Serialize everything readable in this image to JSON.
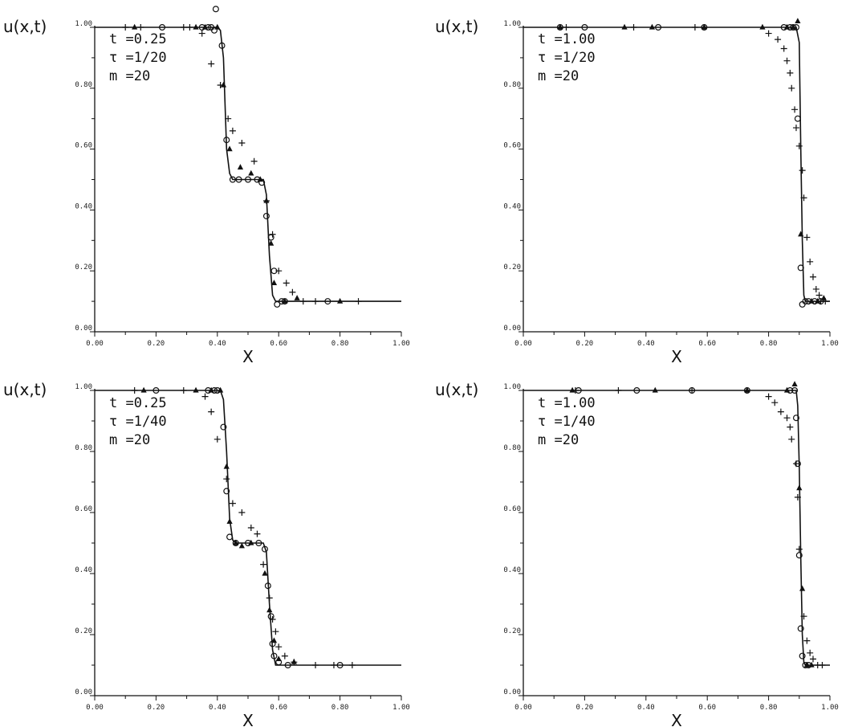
{
  "chart_data": [
    {
      "type": "line",
      "ylabel": "u(x,t)",
      "xlabel": "X",
      "xlim": [
        0,
        1
      ],
      "ylim": [
        0,
        1
      ],
      "xticks": [
        "0.00",
        "0.20",
        "0.40",
        "0.60",
        "0.80",
        "1.00"
      ],
      "yticks": [
        "0.00",
        "0.20",
        "0.40",
        "0.60",
        "0.80",
        "1.00"
      ],
      "annotation": [
        "t =0.25",
        "τ =1/20",
        "m =20"
      ],
      "exact": [
        [
          0,
          1
        ],
        [
          0.4,
          1
        ],
        [
          0.41,
          0.99
        ],
        [
          0.42,
          0.9
        ],
        [
          0.43,
          0.6
        ],
        [
          0.44,
          0.52
        ],
        [
          0.45,
          0.5
        ],
        [
          0.55,
          0.5
        ],
        [
          0.56,
          0.45
        ],
        [
          0.57,
          0.25
        ],
        [
          0.58,
          0.12
        ],
        [
          0.59,
          0.1
        ],
        [
          1.0,
          0.1
        ]
      ],
      "series": [
        {
          "marker": "circle",
          "points": [
            [
              0.22,
              1.0
            ],
            [
              0.35,
              1.0
            ],
            [
              0.37,
              1.0
            ],
            [
              0.38,
              1.0
            ],
            [
              0.39,
              0.99
            ],
            [
              0.395,
              1.06
            ],
            [
              0.415,
              0.94
            ],
            [
              0.43,
              0.63
            ],
            [
              0.45,
              0.5
            ],
            [
              0.47,
              0.5
            ],
            [
              0.5,
              0.5
            ],
            [
              0.53,
              0.5
            ],
            [
              0.545,
              0.49
            ],
            [
              0.56,
              0.38
            ],
            [
              0.575,
              0.31
            ],
            [
              0.585,
              0.2
            ],
            [
              0.595,
              0.09
            ],
            [
              0.61,
              0.1
            ],
            [
              0.62,
              0.1
            ],
            [
              0.76,
              0.1
            ]
          ]
        },
        {
          "marker": "triangle",
          "points": [
            [
              0.13,
              1.0
            ],
            [
              0.33,
              1.0
            ],
            [
              0.36,
              1.0
            ],
            [
              0.4,
              1.0
            ],
            [
              0.42,
              0.81
            ],
            [
              0.44,
              0.6
            ],
            [
              0.475,
              0.54
            ],
            [
              0.51,
              0.52
            ],
            [
              0.54,
              0.5
            ],
            [
              0.56,
              0.43
            ],
            [
              0.575,
              0.29
            ],
            [
              0.585,
              0.16
            ],
            [
              0.62,
              0.1
            ],
            [
              0.66,
              0.11
            ],
            [
              0.8,
              0.1
            ]
          ]
        },
        {
          "marker": "plus",
          "points": [
            [
              0.1,
              1.0
            ],
            [
              0.15,
              1.0
            ],
            [
              0.29,
              1.0
            ],
            [
              0.31,
              1.0
            ],
            [
              0.35,
              0.98
            ],
            [
              0.38,
              0.88
            ],
            [
              0.41,
              0.81
            ],
            [
              0.435,
              0.7
            ],
            [
              0.45,
              0.66
            ],
            [
              0.48,
              0.62
            ],
            [
              0.52,
              0.56
            ],
            [
              0.56,
              0.43
            ],
            [
              0.58,
              0.32
            ],
            [
              0.6,
              0.2
            ],
            [
              0.625,
              0.16
            ],
            [
              0.645,
              0.13
            ],
            [
              0.68,
              0.1
            ],
            [
              0.72,
              0.1
            ],
            [
              0.86,
              0.1
            ]
          ]
        }
      ]
    },
    {
      "type": "line",
      "ylabel": "u(x,t)",
      "xlabel": "X",
      "xlim": [
        0,
        1
      ],
      "ylim": [
        0,
        1
      ],
      "xticks": [
        "0.00",
        "0.20",
        "0.40",
        "0.60",
        "0.80",
        "1.00"
      ],
      "yticks": [
        "0.00",
        "0.20",
        "0.40",
        "0.60",
        "0.80",
        "1.00"
      ],
      "annotation": [
        "t =1.00",
        "τ =1/20",
        "m =20"
      ],
      "exact": [
        [
          0,
          1
        ],
        [
          0.89,
          1
        ],
        [
          0.9,
          0.95
        ],
        [
          0.905,
          0.6
        ],
        [
          0.91,
          0.3
        ],
        [
          0.915,
          0.12
        ],
        [
          0.92,
          0.1
        ],
        [
          1.0,
          0.1
        ]
      ],
      "series": [
        {
          "marker": "circle",
          "points": [
            [
              0.12,
              1.0
            ],
            [
              0.2,
              1.0
            ],
            [
              0.44,
              1.0
            ],
            [
              0.59,
              1.0
            ],
            [
              0.85,
              1.0
            ],
            [
              0.87,
              1.0
            ],
            [
              0.88,
              1.0
            ],
            [
              0.89,
              1.0
            ],
            [
              0.895,
              0.7
            ],
            [
              0.905,
              0.21
            ],
            [
              0.91,
              0.09
            ],
            [
              0.92,
              0.1
            ],
            [
              0.93,
              0.1
            ],
            [
              0.95,
              0.1
            ],
            [
              0.97,
              0.1
            ]
          ]
        },
        {
          "marker": "triangle",
          "points": [
            [
              0.12,
              1.0
            ],
            [
              0.33,
              1.0
            ],
            [
              0.42,
              1.0
            ],
            [
              0.59,
              1.0
            ],
            [
              0.78,
              1.0
            ],
            [
              0.86,
              1.0
            ],
            [
              0.88,
              1.0
            ],
            [
              0.895,
              1.02
            ],
            [
              0.905,
              0.32
            ],
            [
              0.94,
              0.1
            ],
            [
              0.96,
              0.1
            ],
            [
              0.98,
              0.11
            ]
          ]
        },
        {
          "marker": "plus",
          "points": [
            [
              0.14,
              1.0
            ],
            [
              0.36,
              1.0
            ],
            [
              0.56,
              1.0
            ],
            [
              0.8,
              0.98
            ],
            [
              0.83,
              0.96
            ],
            [
              0.85,
              0.93
            ],
            [
              0.86,
              0.89
            ],
            [
              0.87,
              0.85
            ],
            [
              0.875,
              0.8
            ],
            [
              0.885,
              0.73
            ],
            [
              0.89,
              0.67
            ],
            [
              0.9,
              0.61
            ],
            [
              0.91,
              0.53
            ],
            [
              0.915,
              0.44
            ],
            [
              0.925,
              0.31
            ],
            [
              0.935,
              0.23
            ],
            [
              0.945,
              0.18
            ],
            [
              0.955,
              0.14
            ],
            [
              0.965,
              0.12
            ],
            [
              0.97,
              0.1
            ],
            [
              0.985,
              0.1
            ]
          ]
        }
      ]
    },
    {
      "type": "line",
      "ylabel": "u(x,t)",
      "xlabel": "X",
      "xlim": [
        0,
        1
      ],
      "ylim": [
        0,
        1
      ],
      "xticks": [
        "0.00",
        "0.20",
        "0.40",
        "0.60",
        "0.80",
        "1.00"
      ],
      "yticks": [
        "0.00",
        "0.20",
        "0.40",
        "0.60",
        "0.80",
        "1.00"
      ],
      "annotation": [
        "t =0.25",
        "τ =1/40",
        "m =20"
      ],
      "exact": [
        [
          0,
          1
        ],
        [
          0.41,
          1
        ],
        [
          0.42,
          0.97
        ],
        [
          0.43,
          0.8
        ],
        [
          0.44,
          0.58
        ],
        [
          0.45,
          0.51
        ],
        [
          0.46,
          0.5
        ],
        [
          0.55,
          0.5
        ],
        [
          0.56,
          0.47
        ],
        [
          0.57,
          0.3
        ],
        [
          0.58,
          0.15
        ],
        [
          0.59,
          0.1
        ],
        [
          1.0,
          0.1
        ]
      ],
      "series": [
        {
          "marker": "circle",
          "points": [
            [
              0.2,
              1.0
            ],
            [
              0.37,
              1.0
            ],
            [
              0.39,
              1.0
            ],
            [
              0.4,
              1.0
            ],
            [
              0.42,
              0.88
            ],
            [
              0.43,
              0.67
            ],
            [
              0.44,
              0.52
            ],
            [
              0.46,
              0.5
            ],
            [
              0.5,
              0.5
            ],
            [
              0.535,
              0.5
            ],
            [
              0.555,
              0.48
            ],
            [
              0.565,
              0.36
            ],
            [
              0.575,
              0.26
            ],
            [
              0.58,
              0.17
            ],
            [
              0.585,
              0.13
            ],
            [
              0.6,
              0.11
            ],
            [
              0.63,
              0.1
            ],
            [
              0.8,
              0.1
            ]
          ]
        },
        {
          "marker": "triangle",
          "points": [
            [
              0.16,
              1.0
            ],
            [
              0.33,
              1.0
            ],
            [
              0.38,
              1.0
            ],
            [
              0.41,
              1.0
            ],
            [
              0.43,
              0.75
            ],
            [
              0.44,
              0.57
            ],
            [
              0.46,
              0.5
            ],
            [
              0.48,
              0.49
            ],
            [
              0.51,
              0.5
            ],
            [
              0.555,
              0.4
            ],
            [
              0.57,
              0.28
            ],
            [
              0.585,
              0.18
            ],
            [
              0.6,
              0.12
            ],
            [
              0.65,
              0.11
            ]
          ]
        },
        {
          "marker": "plus",
          "points": [
            [
              0.13,
              1.0
            ],
            [
              0.29,
              1.0
            ],
            [
              0.36,
              0.98
            ],
            [
              0.38,
              0.93
            ],
            [
              0.4,
              0.84
            ],
            [
              0.43,
              0.71
            ],
            [
              0.45,
              0.63
            ],
            [
              0.48,
              0.6
            ],
            [
              0.51,
              0.55
            ],
            [
              0.53,
              0.53
            ],
            [
              0.55,
              0.43
            ],
            [
              0.57,
              0.32
            ],
            [
              0.58,
              0.25
            ],
            [
              0.59,
              0.21
            ],
            [
              0.6,
              0.16
            ],
            [
              0.62,
              0.13
            ],
            [
              0.65,
              0.11
            ],
            [
              0.72,
              0.1
            ],
            [
              0.78,
              0.1
            ],
            [
              0.84,
              0.1
            ]
          ]
        }
      ]
    },
    {
      "type": "line",
      "ylabel": "u(x,t)",
      "xlabel": "X",
      "xlim": [
        0,
        1
      ],
      "ylim": [
        0,
        1
      ],
      "xticks": [
        "0.00",
        "0.20",
        "0.40",
        "0.60",
        "0.80",
        "1.00"
      ],
      "yticks": [
        "0.00",
        "0.20",
        "0.40",
        "0.60",
        "0.80",
        "1.00"
      ],
      "annotation": [
        "t =1.00",
        "τ =1/40",
        "m =20"
      ],
      "exact": [
        [
          0,
          1
        ],
        [
          0.89,
          1
        ],
        [
          0.895,
          0.95
        ],
        [
          0.9,
          0.75
        ],
        [
          0.905,
          0.45
        ],
        [
          0.91,
          0.2
        ],
        [
          0.915,
          0.11
        ],
        [
          0.92,
          0.1
        ],
        [
          1.0,
          0.1
        ]
      ],
      "series": [
        {
          "marker": "circle",
          "points": [
            [
              0.18,
              1.0
            ],
            [
              0.37,
              1.0
            ],
            [
              0.55,
              1.0
            ],
            [
              0.73,
              1.0
            ],
            [
              0.87,
              1.0
            ],
            [
              0.885,
              1.0
            ],
            [
              0.89,
              0.91
            ],
            [
              0.895,
              0.76
            ],
            [
              0.9,
              0.46
            ],
            [
              0.905,
              0.22
            ],
            [
              0.91,
              0.13
            ],
            [
              0.92,
              0.1
            ],
            [
              0.93,
              0.1
            ]
          ]
        },
        {
          "marker": "triangle",
          "points": [
            [
              0.16,
              1.0
            ],
            [
              0.43,
              1.0
            ],
            [
              0.73,
              1.0
            ],
            [
              0.86,
              1.0
            ],
            [
              0.885,
              1.02
            ],
            [
              0.9,
              0.68
            ],
            [
              0.91,
              0.35
            ],
            [
              0.925,
              0.1
            ],
            [
              0.94,
              0.1
            ]
          ]
        },
        {
          "marker": "plus",
          "points": [
            [
              0.17,
              1.0
            ],
            [
              0.31,
              1.0
            ],
            [
              0.55,
              1.0
            ],
            [
              0.8,
              0.98
            ],
            [
              0.82,
              0.96
            ],
            [
              0.84,
              0.93
            ],
            [
              0.86,
              0.91
            ],
            [
              0.87,
              0.88
            ],
            [
              0.875,
              0.84
            ],
            [
              0.89,
              0.76
            ],
            [
              0.895,
              0.65
            ],
            [
              0.9,
              0.48
            ],
            [
              0.915,
              0.26
            ],
            [
              0.925,
              0.18
            ],
            [
              0.935,
              0.14
            ],
            [
              0.945,
              0.12
            ],
            [
              0.96,
              0.1
            ],
            [
              0.975,
              0.1
            ]
          ]
        }
      ]
    }
  ]
}
